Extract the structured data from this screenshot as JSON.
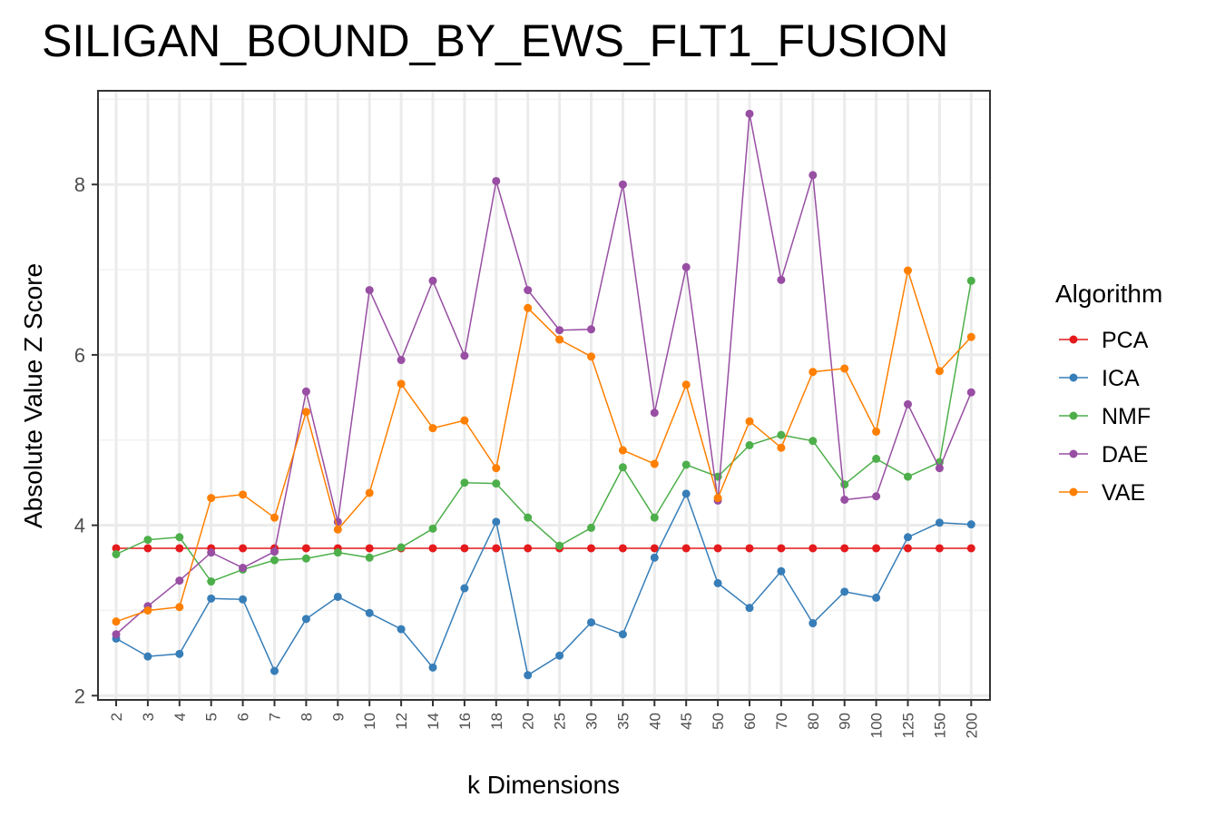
{
  "chart_data": {
    "type": "line",
    "title": "SILIGAN_BOUND_BY_EWS_FLT1_FUSION",
    "xlabel": "k Dimensions",
    "ylabel": "Absolute Value Z Score",
    "ylim": [
      1.95,
      9.1
    ],
    "yticks": [
      2,
      4,
      6,
      8
    ],
    "grid": true,
    "legend_title": "Algorithm",
    "legend_position": "right",
    "categories": [
      "2",
      "3",
      "4",
      "5",
      "6",
      "7",
      "8",
      "9",
      "10",
      "12",
      "14",
      "16",
      "18",
      "20",
      "25",
      "30",
      "35",
      "40",
      "45",
      "50",
      "60",
      "70",
      "80",
      "90",
      "100",
      "125",
      "150",
      "200"
    ],
    "series": [
      {
        "name": "PCA",
        "color": "#E41A1C",
        "values": [
          3.73,
          3.73,
          3.73,
          3.73,
          3.73,
          3.73,
          3.73,
          3.73,
          3.73,
          3.73,
          3.73,
          3.73,
          3.73,
          3.73,
          3.73,
          3.73,
          3.73,
          3.73,
          3.73,
          3.73,
          3.73,
          3.73,
          3.73,
          3.73,
          3.73,
          3.73,
          3.73,
          3.73
        ]
      },
      {
        "name": "ICA",
        "color": "#377EB8",
        "values": [
          2.67,
          2.46,
          2.49,
          3.14,
          3.13,
          2.29,
          2.9,
          3.16,
          2.97,
          2.78,
          2.33,
          3.26,
          4.04,
          2.24,
          2.47,
          2.86,
          2.72,
          3.62,
          4.37,
          3.32,
          3.03,
          3.46,
          2.85,
          3.22,
          3.15,
          3.86,
          4.03,
          4.01
        ]
      },
      {
        "name": "NMF",
        "color": "#4DAF4A",
        "values": [
          3.66,
          3.83,
          3.86,
          3.34,
          3.48,
          3.59,
          3.61,
          3.68,
          3.62,
          3.74,
          3.96,
          4.5,
          4.49,
          4.09,
          3.76,
          3.97,
          4.68,
          4.09,
          4.71,
          4.57,
          4.94,
          5.06,
          4.99,
          4.48,
          4.78,
          4.57,
          4.74,
          6.87
        ]
      },
      {
        "name": "DAE",
        "color": "#984EA3",
        "values": [
          2.72,
          3.05,
          3.35,
          3.68,
          3.5,
          3.69,
          5.57,
          4.04,
          6.76,
          5.94,
          6.87,
          5.99,
          8.04,
          6.76,
          6.29,
          6.3,
          8.0,
          5.32,
          7.03,
          4.29,
          8.83,
          6.88,
          8.11,
          4.3,
          4.34,
          5.42,
          4.67,
          5.56
        ]
      },
      {
        "name": "VAE",
        "color": "#FF7F00",
        "values": [
          2.87,
          3.0,
          3.04,
          4.32,
          4.36,
          4.09,
          5.33,
          3.95,
          4.38,
          5.66,
          5.14,
          5.23,
          4.67,
          6.55,
          6.18,
          5.98,
          4.88,
          4.72,
          5.65,
          4.32,
          5.22,
          4.91,
          5.8,
          5.84,
          5.1,
          6.99,
          5.81,
          6.21
        ]
      }
    ]
  }
}
